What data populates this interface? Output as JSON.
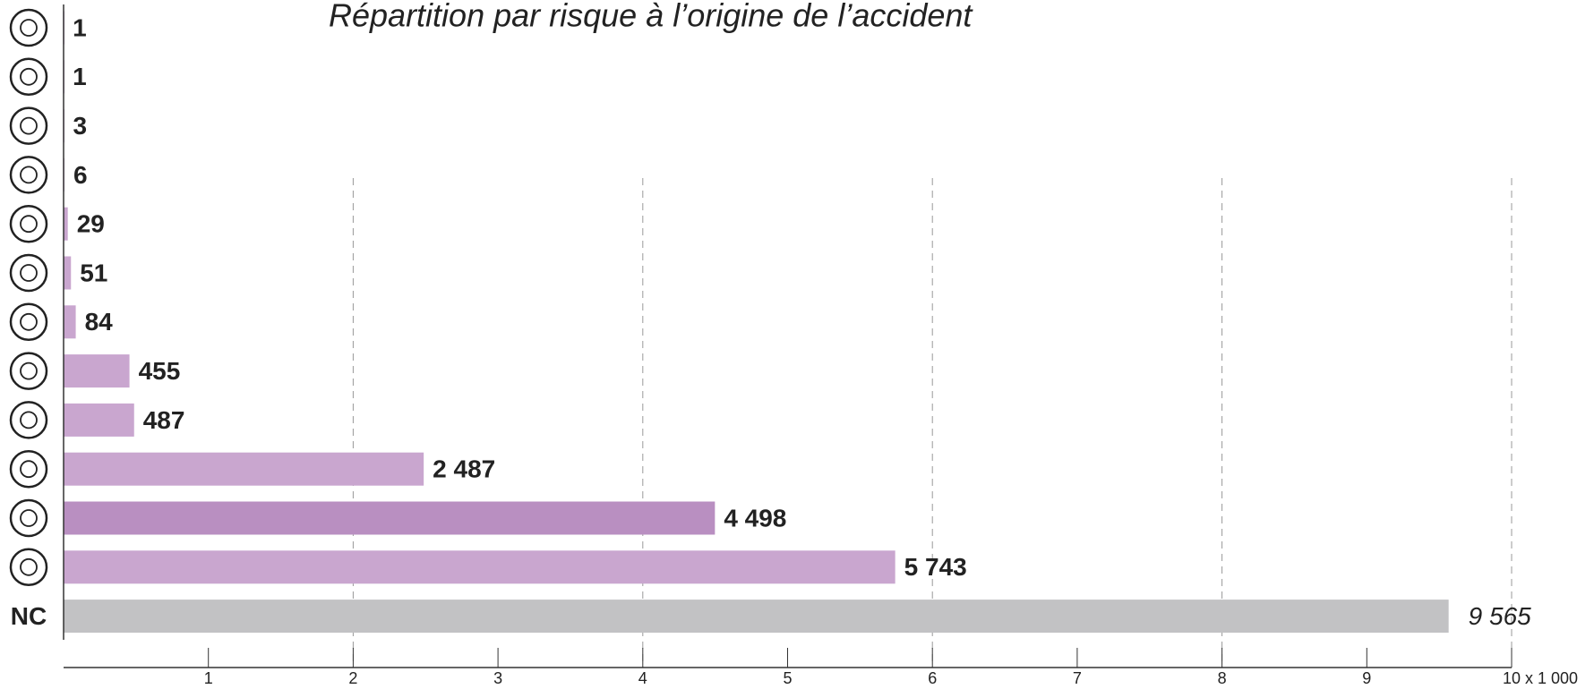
{
  "chart_data": {
    "type": "hbar",
    "title": "Répartition par risque à l’origine de l’accident",
    "categories": [
      null,
      null,
      null,
      null,
      null,
      null,
      null,
      null,
      null,
      null,
      null,
      null,
      "NC"
    ],
    "values": [
      0.001,
      0.001,
      0.003,
      0.006,
      0.029,
      0.051,
      0.084,
      0.455,
      0.487,
      2.487,
      4.498,
      5.743,
      9.565
    ],
    "value_labels": [
      "1",
      "1",
      "3",
      "6",
      "29",
      "51",
      "84",
      "455",
      "487",
      "2 487",
      "4 498",
      "5 743",
      "9 565"
    ],
    "colors": [
      "#c9a6cf",
      "#c9a6cf",
      "#c9a6cf",
      "#c9a6cf",
      "#c9a6cf",
      "#c9a6cf",
      "#c9a6cf",
      "#c9a6cf",
      "#c9a6cf",
      "#c9a6cf",
      "#b98fc1",
      "#c9a6cf",
      "#c2c2c4"
    ],
    "xlim": [
      0,
      10
    ],
    "xticks": [
      1,
      2,
      3,
      4,
      5,
      6,
      7,
      8,
      9,
      {
        "value": 10,
        "label": "10 x 1 000"
      }
    ],
    "xgrid": [
      2,
      4,
      6,
      8,
      10
    ],
    "grid": true
  }
}
